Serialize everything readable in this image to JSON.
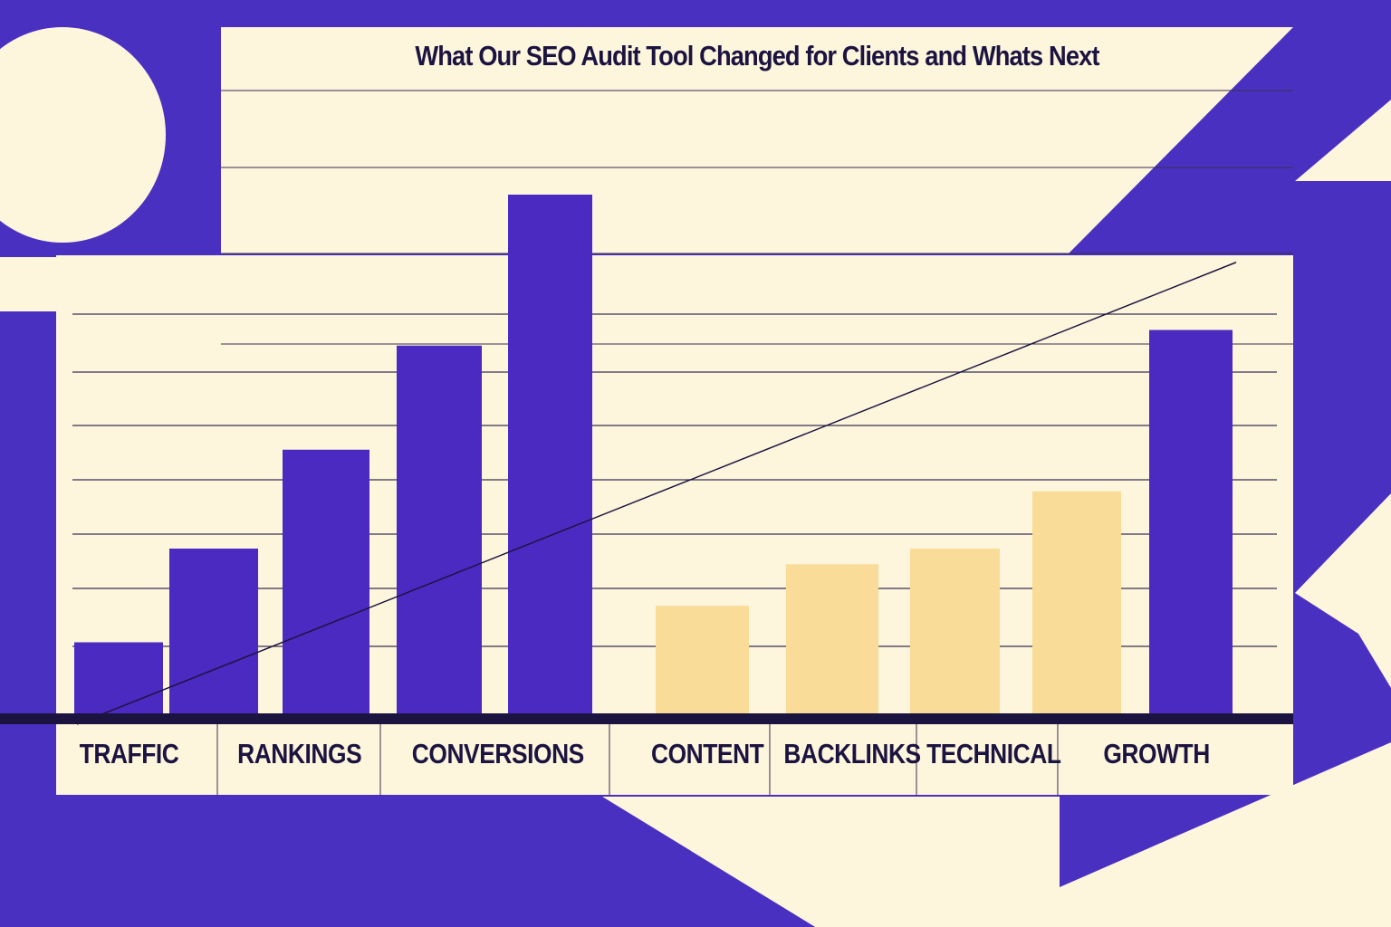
{
  "chart_data": {
    "type": "bar",
    "title": "What Our SEO Audit Tool Changed for Clients and Whats Next",
    "categories": [
      "TRAFFIC",
      "RANKINGS",
      "CONVERSIONS",
      "CONTENT",
      "BACKLINKS",
      "TECHNICAL",
      "GROWTH"
    ],
    "bars": [
      {
        "value": 14,
        "color": "#4a2ac0"
      },
      {
        "value": 32,
        "color": "#4a2ac0"
      },
      {
        "value": 51,
        "color": "#4a2ac0"
      },
      {
        "value": 71,
        "color": "#4a2ac0"
      },
      {
        "value": 100,
        "color": "#4a2ac0"
      },
      {
        "value": 21,
        "color": "#f9dc98"
      },
      {
        "value": 29,
        "color": "#f9dc98"
      },
      {
        "value": 32,
        "color": "#f9dc98"
      },
      {
        "value": 43,
        "color": "#f9dc98"
      },
      {
        "value": 74,
        "color": "#4a2ac0"
      }
    ],
    "trend_line": {
      "start": 0,
      "end": 87
    },
    "ylim": [
      0,
      100
    ],
    "grid": true,
    "colors": {
      "background": "#4a30c0",
      "panel": "#fdf5dc",
      "text": "#1c1440"
    }
  }
}
